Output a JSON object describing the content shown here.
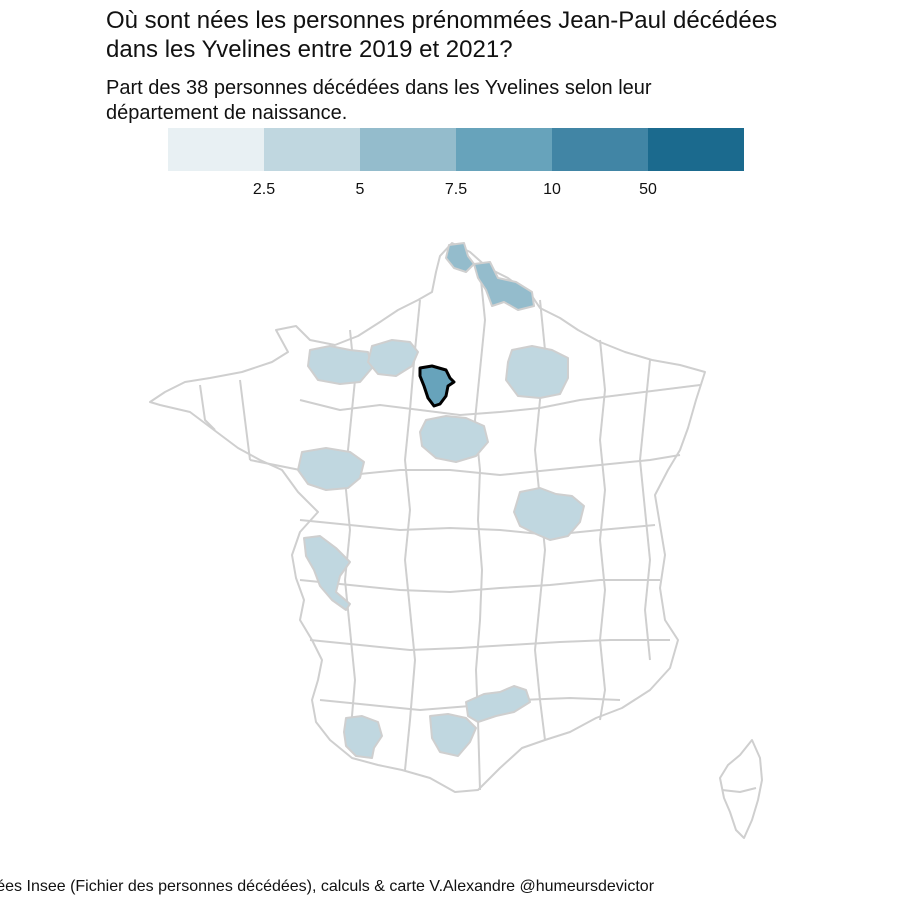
{
  "title_lines": [
    "Où sont nées les personnes prénommées Jean-Paul décédées",
    "dans les Yvelines entre 2019 et 2021?"
  ],
  "subtitle_lines": [
    "Part des 38 personnes décédées dans les Yvelines selon leur",
    "département de naissance."
  ],
  "legend": {
    "colors": [
      "#e8f0f3",
      "#c0d7e0",
      "#94bccc",
      "#67a3bb",
      "#4185a5",
      "#1b6a8e"
    ],
    "tick_labels": [
      "2.5",
      "5",
      "7.5",
      "10",
      "50"
    ]
  },
  "caption": "Données Insee (Fichier des personnes décédées), calculs & carte V.Alexandre @humeursdevictor",
  "colors": {
    "empty": "#ffffff",
    "border": "#cfcfcf",
    "highlight_border": "#000000"
  },
  "highlighted_department": "Yvelines",
  "map_data": {
    "region": "France métropolitaine",
    "filled_departments": [
      {
        "name": "Pas-de-Calais",
        "bin": 2
      },
      {
        "name": "Nord",
        "bin": 2
      },
      {
        "name": "Calvados",
        "bin": 1
      },
      {
        "name": "Eure",
        "bin": 1
      },
      {
        "name": "Yvelines",
        "bin": 3
      },
      {
        "name": "Loiret",
        "bin": 1
      },
      {
        "name": "Marne",
        "bin": 1
      },
      {
        "name": "Maine-et-Loire",
        "bin": 1
      },
      {
        "name": "Saône-et-Loire",
        "bin": 1
      },
      {
        "name": "Charente-Maritime",
        "bin": 1
      },
      {
        "name": "Hautes-Pyrénées",
        "bin": 1
      },
      {
        "name": "Aude",
        "bin": 1
      },
      {
        "name": "Hérault",
        "bin": 1
      }
    ]
  }
}
